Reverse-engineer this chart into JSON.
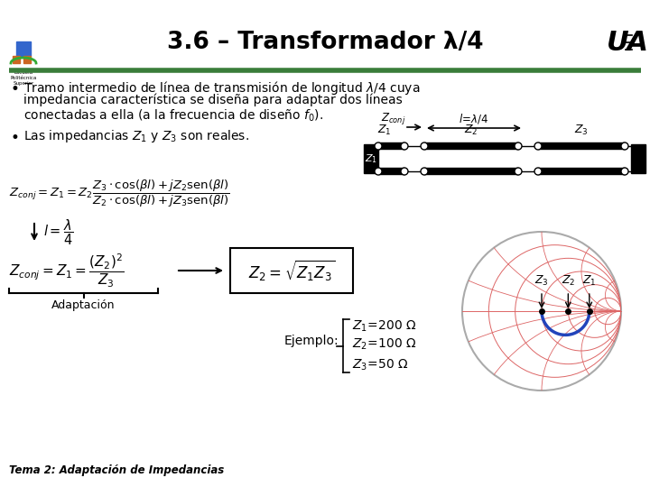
{
  "title": "3.6 – Transformador λ/4",
  "bg_color": "#ffffff",
  "green_color": "#3a7d3a",
  "header_line_color": "#3a7d3a",
  "bullet1_line1": "Tramo intermedio de línea de transmisión de longitud λ/4 cuya",
  "bullet1_line2": "impedancia característica se diseña para adaptar dos líneas",
  "bullet1_line3": "conectadas a ella (a la frecuencia de diseño $f_0$).",
  "bullet2": "Las impedancias $Z_1$ y $Z_3$ son reales.",
  "footer": "Tema 2: Adaptación de Impedancias",
  "smith_red": "#dd6666",
  "smith_outer": "#cc5555",
  "smith_gray": "#aaaaaa",
  "blue_arc": "#2244bb"
}
